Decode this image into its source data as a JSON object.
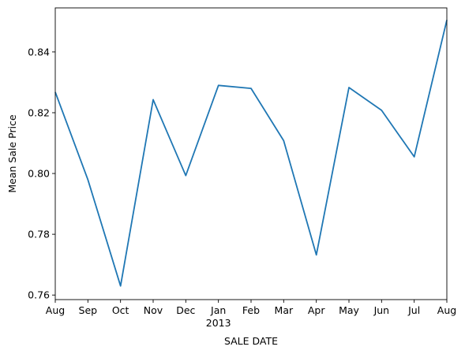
{
  "chart_data": {
    "type": "line",
    "xlabel": "SALE DATE",
    "ylabel": "Mean Sale Price",
    "x": [
      "Aug",
      "Sep",
      "Oct",
      "Nov",
      "Dec",
      "Jan",
      "Feb",
      "Mar",
      "Apr",
      "May",
      "Jun",
      "Jul",
      "Aug"
    ],
    "year_label": "2013",
    "series": [
      {
        "values": [
          0.8268,
          0.798,
          0.763,
          0.8243,
          0.7993,
          0.829,
          0.828,
          0.8108,
          0.7732,
          0.8283,
          0.8208,
          0.8055,
          0.8505
        ]
      }
    ],
    "ylim": [
      0.7585,
      0.8545
    ],
    "yticks": [
      "0.76",
      "0.78",
      "0.80",
      "0.82",
      "0.84"
    ],
    "ytick_values": [
      0.76,
      0.78,
      0.8,
      0.82,
      0.84
    ],
    "grid": false,
    "line_color": "#1f77b4"
  }
}
